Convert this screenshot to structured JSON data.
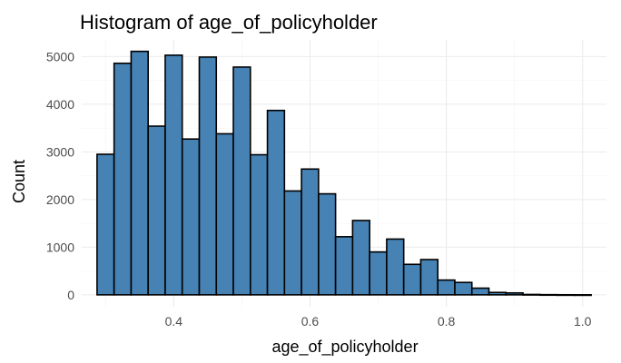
{
  "chart_data": {
    "type": "bar",
    "title": "Histogram of age_of_policyholder",
    "xlabel": "age_of_policyholder",
    "ylabel": "Count",
    "xlim": [
      0.265,
      1.035
    ],
    "ylim": [
      -250,
      5350
    ],
    "xticks": [
      "0.4",
      "0.6",
      "0.8",
      "1.0"
    ],
    "yticks": [
      "0",
      "1000",
      "2000",
      "3000",
      "4000",
      "5000"
    ],
    "grid": true,
    "bin_width": 0.025,
    "bar_color": "#4682B4",
    "edge_color": "#000000",
    "bins": [
      {
        "x0": 0.2875,
        "x1": 0.3125,
        "count": 2950
      },
      {
        "x0": 0.3125,
        "x1": 0.3375,
        "count": 4860
      },
      {
        "x0": 0.3375,
        "x1": 0.3625,
        "count": 5110
      },
      {
        "x0": 0.3625,
        "x1": 0.3875,
        "count": 3540
      },
      {
        "x0": 0.3875,
        "x1": 0.4125,
        "count": 5030
      },
      {
        "x0": 0.4125,
        "x1": 0.4375,
        "count": 3270
      },
      {
        "x0": 0.4375,
        "x1": 0.4625,
        "count": 4990
      },
      {
        "x0": 0.4625,
        "x1": 0.4875,
        "count": 3380
      },
      {
        "x0": 0.4875,
        "x1": 0.5125,
        "count": 4780
      },
      {
        "x0": 0.5125,
        "x1": 0.5375,
        "count": 2940
      },
      {
        "x0": 0.5375,
        "x1": 0.5625,
        "count": 3870
      },
      {
        "x0": 0.5625,
        "x1": 0.5875,
        "count": 2180
      },
      {
        "x0": 0.5875,
        "x1": 0.6125,
        "count": 2640
      },
      {
        "x0": 0.6125,
        "x1": 0.6375,
        "count": 2120
      },
      {
        "x0": 0.6375,
        "x1": 0.6625,
        "count": 1220
      },
      {
        "x0": 0.6625,
        "x1": 0.6875,
        "count": 1560
      },
      {
        "x0": 0.6875,
        "x1": 0.7125,
        "count": 900
      },
      {
        "x0": 0.7125,
        "x1": 0.7375,
        "count": 1170
      },
      {
        "x0": 0.7375,
        "x1": 0.7625,
        "count": 640
      },
      {
        "x0": 0.7625,
        "x1": 0.7875,
        "count": 740
      },
      {
        "x0": 0.7875,
        "x1": 0.8125,
        "count": 310
      },
      {
        "x0": 0.8125,
        "x1": 0.8375,
        "count": 260
      },
      {
        "x0": 0.8375,
        "x1": 0.8625,
        "count": 140
      },
      {
        "x0": 0.8625,
        "x1": 0.8875,
        "count": 50
      },
      {
        "x0": 0.8875,
        "x1": 0.9125,
        "count": 40
      },
      {
        "x0": 0.9125,
        "x1": 0.9375,
        "count": 8
      },
      {
        "x0": 0.9375,
        "x1": 0.9625,
        "count": 4
      },
      {
        "x0": 0.9625,
        "x1": 0.9875,
        "count": 2
      },
      {
        "x0": 0.9875,
        "x1": 1.0125,
        "count": 1
      }
    ]
  }
}
